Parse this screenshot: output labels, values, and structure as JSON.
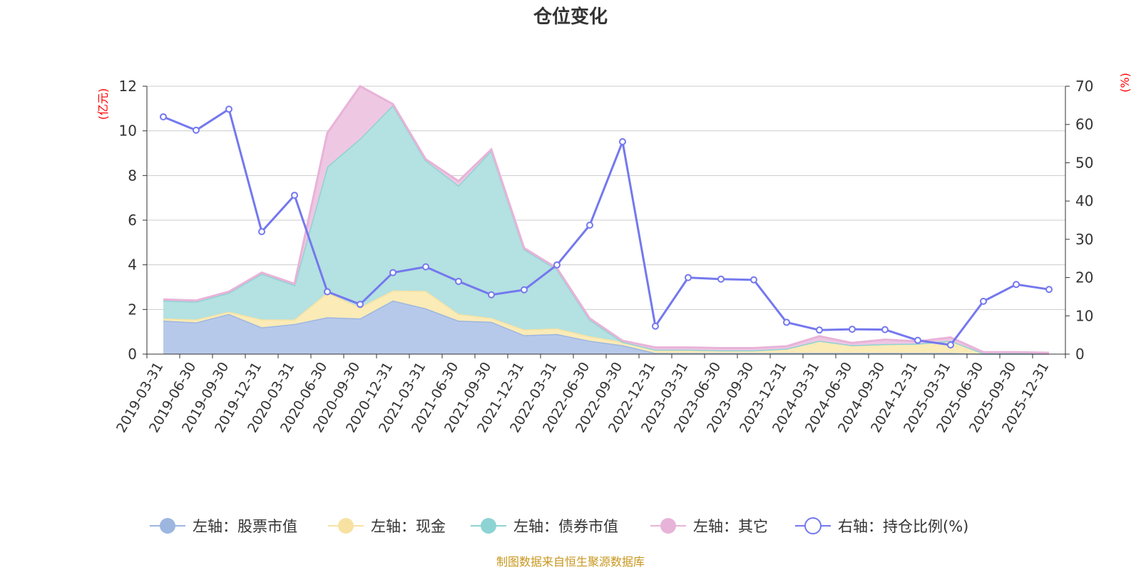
{
  "chart_data": {
    "type": "area",
    "title": "仓位变化",
    "source": "制图数据来自恒生聚源数据库",
    "categories": [
      "2019-03-31",
      "2019-06-30",
      "2019-09-30",
      "2019-12-31",
      "2020-03-31",
      "2020-06-30",
      "2020-09-30",
      "2020-12-31",
      "2021-03-31",
      "2021-06-30",
      "2021-09-30",
      "2021-12-31",
      "2022-03-31",
      "2022-06-30",
      "2022-09-30",
      "2022-12-31",
      "2023-03-31",
      "2023-06-30",
      "2023-09-30",
      "2023-12-31",
      "2024-03-31",
      "2024-06-30",
      "2024-09-30",
      "2024-12-31",
      "2025-03-31",
      "2025-06-30",
      "2025-09-30",
      "2025-12-31"
    ],
    "left_axis": {
      "unit": "(亿元)",
      "min": 0,
      "max": 12,
      "ticks": [
        0,
        2,
        4,
        6,
        8,
        10,
        12
      ]
    },
    "right_axis": {
      "unit": "(%)",
      "min": 0,
      "max": 70,
      "ticks": [
        0,
        10,
        20,
        30,
        40,
        50,
        60,
        70
      ]
    },
    "stacked_series": [
      {
        "name": "左轴：股票市值",
        "color": "#9db6e0",
        "fill": "#b7c9ea",
        "values": [
          1.5,
          1.42,
          1.8,
          1.2,
          1.35,
          1.65,
          1.6,
          2.4,
          2.05,
          1.5,
          1.45,
          0.85,
          0.9,
          0.6,
          0.4,
          0.05,
          0.05,
          0.05,
          0.05,
          0.05,
          0.05,
          0.05,
          0.05,
          0.05,
          0.05,
          0.02,
          0.02,
          0.02
        ]
      },
      {
        "name": "左轴：现金",
        "color": "#f7e2a2",
        "fill": "#faebb7",
        "values": [
          0.1,
          0.13,
          0.1,
          0.35,
          0.2,
          1.1,
          0.5,
          0.45,
          0.78,
          0.3,
          0.17,
          0.25,
          0.25,
          0.2,
          0.15,
          0.15,
          0.15,
          0.12,
          0.12,
          0.2,
          0.55,
          0.35,
          0.4,
          0.42,
          0.55,
          0.02,
          0.02,
          0.02
        ]
      },
      {
        "name": "左轴：债券市值",
        "color": "#8ed3d4",
        "fill": "#b4e1e1",
        "values": [
          0.8,
          0.8,
          0.85,
          2.05,
          1.55,
          5.65,
          7.55,
          8.3,
          5.85,
          5.75,
          7.5,
          3.6,
          2.65,
          0.75,
          0.0,
          0.0,
          0.0,
          0.0,
          0.0,
          0.0,
          0.0,
          0.0,
          0.0,
          0.0,
          0.0,
          0.0,
          0.0,
          0.0
        ]
      },
      {
        "name": "左轴：其它",
        "color": "#e8b3d8",
        "fill": "#eec7e3",
        "values": [
          0.05,
          0.05,
          0.05,
          0.05,
          0.05,
          1.5,
          2.35,
          0.05,
          0.05,
          0.2,
          0.05,
          0.05,
          0.05,
          0.05,
          0.05,
          0.1,
          0.1,
          0.1,
          0.1,
          0.1,
          0.2,
          0.1,
          0.2,
          0.1,
          0.15,
          0.05,
          0.05,
          0.02
        ]
      }
    ],
    "line_series": {
      "name": "右轴：持仓比例(%)",
      "color": "#7478ee",
      "values": [
        62.0,
        58.5,
        64.0,
        32.0,
        41.5,
        16.3,
        13.0,
        21.3,
        22.8,
        19.0,
        15.5,
        16.8,
        23.3,
        33.7,
        55.5,
        7.3,
        20.0,
        19.6,
        19.4,
        8.3,
        6.3,
        6.5,
        6.4,
        3.6,
        2.4,
        13.8,
        18.2,
        16.9
      ]
    }
  }
}
